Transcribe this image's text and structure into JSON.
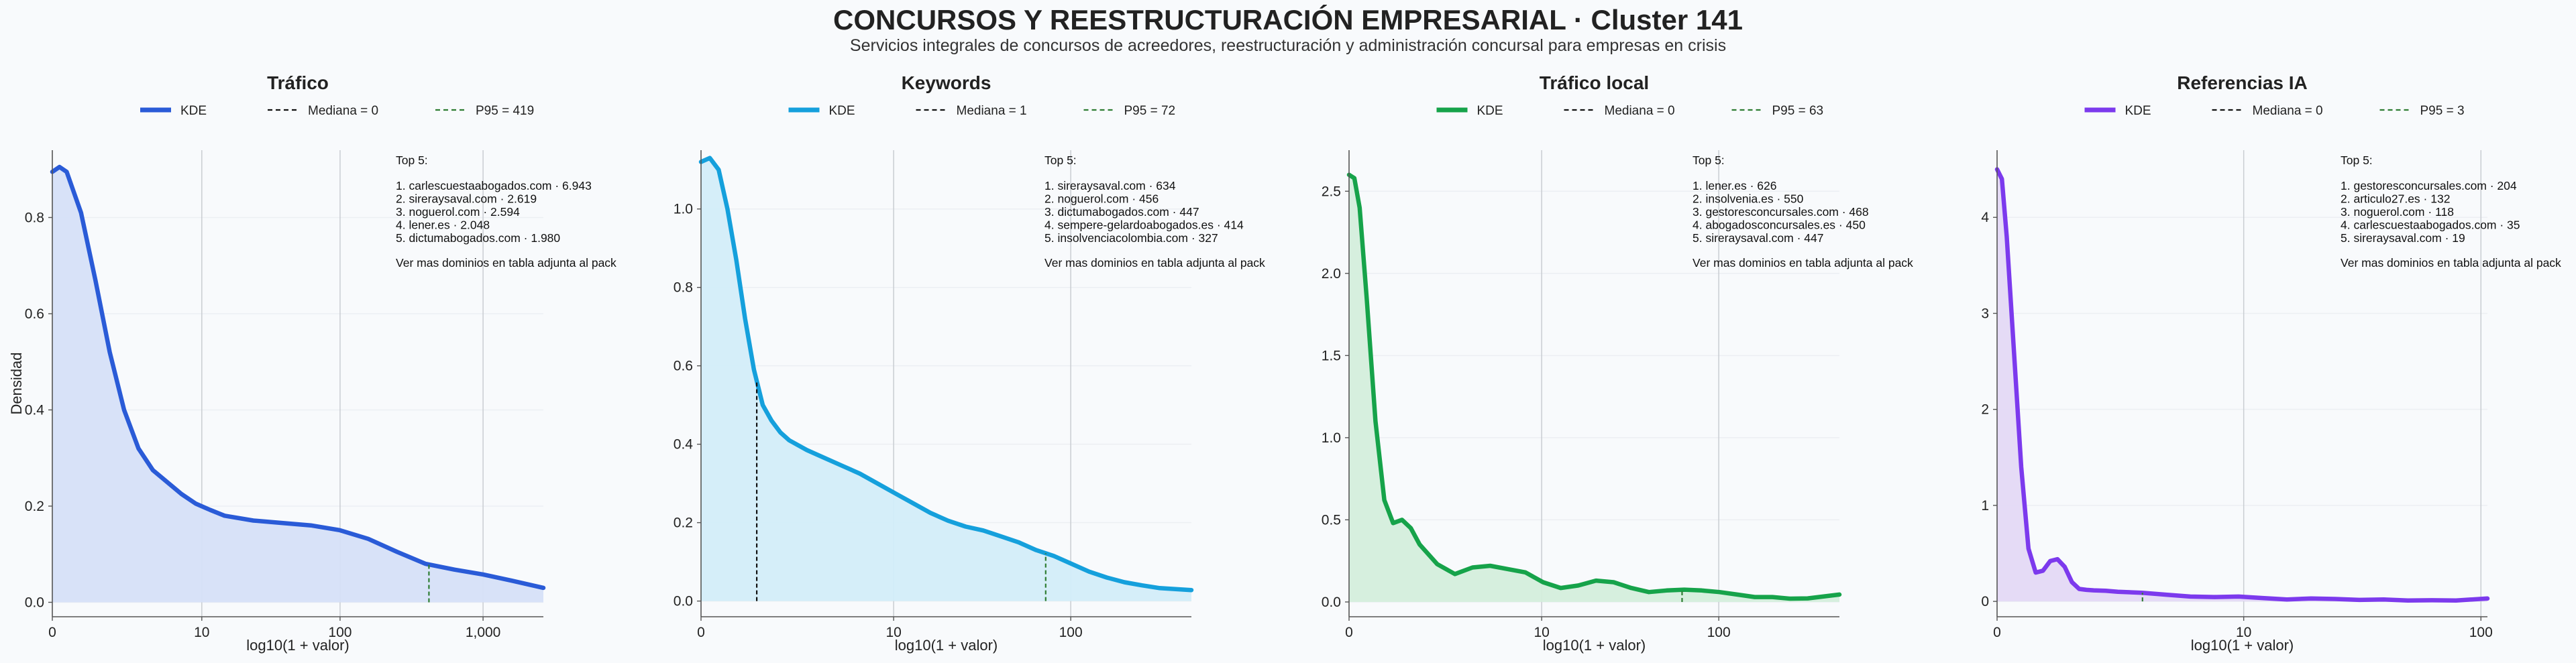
{
  "title": "CONCURSOS Y REESTRUCTURACIÓN EMPRESARIAL · Cluster 141",
  "subtitle": "Servicios integrales de concursos de acreedores, reestructuración y administración concursal para empresas en crisis",
  "colors": {
    "background": "#f8fafc",
    "median": "#111111",
    "p95": "#2e7d32"
  },
  "chart_data": [
    {
      "type": "area",
      "title": "Tráfico",
      "color": "#2a5bd7",
      "fill": "#d6e0f8",
      "xlabel": "log10(1 + valor)",
      "ylabel": "Densidad",
      "xlim": [
        0,
        3.42
      ],
      "ylim": [
        -0.03,
        0.94
      ],
      "xticks": [
        {
          "v": 0,
          "label": "0"
        },
        {
          "v": 1.041,
          "label": "10"
        },
        {
          "v": 2.004,
          "label": "100"
        },
        {
          "v": 3.0,
          "label": "1,000"
        }
      ],
      "yticks": [
        {
          "v": 0,
          "label": "0.0"
        },
        {
          "v": 0.2,
          "label": "0.2"
        },
        {
          "v": 0.4,
          "label": "0.4"
        },
        {
          "v": 0.6,
          "label": "0.6"
        },
        {
          "v": 0.8,
          "label": "0.8"
        }
      ],
      "legend": [
        "KDE",
        "Mediana = 0",
        "P95 = 419"
      ],
      "median": 0,
      "p95": 2.623,
      "kde": {
        "x": [
          0,
          0.05,
          0.1,
          0.2,
          0.3,
          0.4,
          0.5,
          0.6,
          0.7,
          0.8,
          0.9,
          1.0,
          1.1,
          1.2,
          1.4,
          1.6,
          1.8,
          2.0,
          2.2,
          2.4,
          2.6,
          2.8,
          3.0,
          3.2,
          3.42
        ],
        "y": [
          0.895,
          0.905,
          0.895,
          0.81,
          0.67,
          0.52,
          0.4,
          0.32,
          0.275,
          0.25,
          0.225,
          0.205,
          0.192,
          0.18,
          0.17,
          0.165,
          0.16,
          0.15,
          0.132,
          0.105,
          0.08,
          0.068,
          0.058,
          0.045,
          0.03
        ]
      },
      "annotation": {
        "heading": "Top 5:",
        "items": [
          "1. carlescuestaabogados.com · 6.943",
          "2. sireraysaval.com · 2.619",
          "3. noguerol.com · 2.594",
          "4. lener.es · 2.048",
          "5. dictumabogados.com · 1.980"
        ],
        "footer": "Ver mas dominios en tabla adjunta al pack"
      }
    },
    {
      "type": "area",
      "title": "Keywords",
      "color": "#15a0dc",
      "fill": "#d3edf9",
      "xlabel": "log10(1 + valor)",
      "ylabel": "",
      "xlim": [
        0,
        2.78
      ],
      "ylim": [
        -0.04,
        1.15
      ],
      "xticks": [
        {
          "v": 0,
          "label": "0"
        },
        {
          "v": 1.092,
          "label": "10"
        },
        {
          "v": 2.096,
          "label": "100"
        }
      ],
      "yticks": [
        {
          "v": 0,
          "label": "0.0"
        },
        {
          "v": 0.2,
          "label": "0.2"
        },
        {
          "v": 0.4,
          "label": "0.4"
        },
        {
          "v": 0.6,
          "label": "0.6"
        },
        {
          "v": 0.8,
          "label": "0.8"
        },
        {
          "v": 1.0,
          "label": "1.0"
        }
      ],
      "legend": [
        "KDE",
        "Mediana = 1",
        "P95 = 72"
      ],
      "median": 0.316,
      "p95": 1.954,
      "kde": {
        "x": [
          0,
          0.05,
          0.1,
          0.15,
          0.2,
          0.25,
          0.3,
          0.35,
          0.4,
          0.45,
          0.5,
          0.6,
          0.7,
          0.8,
          0.9,
          1.0,
          1.1,
          1.2,
          1.3,
          1.4,
          1.5,
          1.6,
          1.7,
          1.8,
          1.9,
          2.0,
          2.1,
          2.2,
          2.3,
          2.4,
          2.5,
          2.6,
          2.78
        ],
        "y": [
          1.12,
          1.13,
          1.1,
          1.0,
          0.87,
          0.72,
          0.59,
          0.5,
          0.46,
          0.43,
          0.41,
          0.385,
          0.365,
          0.345,
          0.325,
          0.3,
          0.275,
          0.25,
          0.225,
          0.205,
          0.19,
          0.18,
          0.165,
          0.15,
          0.13,
          0.115,
          0.095,
          0.075,
          0.06,
          0.048,
          0.04,
          0.033,
          0.028
        ]
      },
      "annotation": {
        "heading": "Top 5:",
        "items": [
          "1. sireraysaval.com · 634",
          "2. noguerol.com · 456",
          "3. dictumabogados.com · 447",
          "4. sempere-gelardoabogados.es · 414",
          "5. insolvenciacolombia.com · 327"
        ],
        "footer": "Ver mas dominios en tabla adjunta al pack"
      }
    },
    {
      "type": "area",
      "title": "Tráfico local",
      "color": "#16a34a",
      "fill": "#d4eedc",
      "xlabel": "log10(1 + valor)",
      "ylabel": "",
      "xlim": [
        0,
        2.78
      ],
      "ylim": [
        -0.09,
        2.75
      ],
      "xticks": [
        {
          "v": 0,
          "label": "0"
        },
        {
          "v": 1.092,
          "label": "10"
        },
        {
          "v": 2.096,
          "label": "100"
        }
      ],
      "yticks": [
        {
          "v": 0,
          "label": "0.0"
        },
        {
          "v": 0.5,
          "label": "0.5"
        },
        {
          "v": 1.0,
          "label": "1.0"
        },
        {
          "v": 1.5,
          "label": "1.5"
        },
        {
          "v": 2.0,
          "label": "2.0"
        },
        {
          "v": 2.5,
          "label": "2.5"
        }
      ],
      "legend": [
        "KDE",
        "Mediana = 0",
        "P95 = 63"
      ],
      "median": 0,
      "p95": 1.888,
      "kde": {
        "x": [
          0,
          0.03,
          0.06,
          0.1,
          0.15,
          0.2,
          0.25,
          0.3,
          0.35,
          0.4,
          0.5,
          0.6,
          0.7,
          0.8,
          0.9,
          1.0,
          1.1,
          1.2,
          1.3,
          1.4,
          1.5,
          1.6,
          1.7,
          1.8,
          1.9,
          2.0,
          2.1,
          2.2,
          2.3,
          2.4,
          2.5,
          2.6,
          2.78
        ],
        "y": [
          2.6,
          2.58,
          2.4,
          1.85,
          1.1,
          0.62,
          0.48,
          0.5,
          0.45,
          0.35,
          0.23,
          0.17,
          0.21,
          0.22,
          0.2,
          0.18,
          0.12,
          0.085,
          0.1,
          0.13,
          0.12,
          0.085,
          0.06,
          0.07,
          0.075,
          0.07,
          0.06,
          0.045,
          0.03,
          0.03,
          0.02,
          0.022,
          0.045
        ]
      },
      "annotation": {
        "heading": "Top 5:",
        "items": [
          "1. lener.es · 626",
          "2. insolvenia.es · 550",
          "3. gestoresconcursales.com · 468",
          "4. abogadosconcursales.es · 450",
          "5. sireraysaval.com · 447"
        ],
        "footer": "Ver mas dominios en tabla adjunta al pack"
      }
    },
    {
      "type": "area",
      "title": "Referencias IA",
      "color": "#7c3aed",
      "fill": "#e4d9f6",
      "xlabel": "log10(1 + valor)",
      "ylabel": "",
      "xlim": [
        0,
        2.03
      ],
      "ylim": [
        -0.16,
        4.7
      ],
      "xticks": [
        {
          "v": 0,
          "label": "0"
        },
        {
          "v": 1.021,
          "label": "10"
        },
        {
          "v": 2.003,
          "label": "100"
        }
      ],
      "yticks": [
        {
          "v": 0,
          "label": "0"
        },
        {
          "v": 1,
          "label": "1"
        },
        {
          "v": 2,
          "label": "2"
        },
        {
          "v": 3,
          "label": "3"
        },
        {
          "v": 4,
          "label": "4"
        }
      ],
      "legend": [
        "KDE",
        "Mediana = 0",
        "P95 = 3"
      ],
      "median": 0,
      "p95": 0.602,
      "kde": {
        "x": [
          0,
          0.02,
          0.04,
          0.07,
          0.1,
          0.13,
          0.16,
          0.19,
          0.22,
          0.25,
          0.28,
          0.31,
          0.34,
          0.37,
          0.4,
          0.45,
          0.5,
          0.6,
          0.7,
          0.8,
          0.9,
          1.0,
          1.1,
          1.2,
          1.3,
          1.4,
          1.5,
          1.6,
          1.7,
          1.8,
          1.9,
          2.03
        ],
        "y": [
          4.5,
          4.4,
          3.8,
          2.6,
          1.4,
          0.55,
          0.3,
          0.32,
          0.42,
          0.44,
          0.36,
          0.2,
          0.13,
          0.12,
          0.115,
          0.11,
          0.1,
          0.09,
          0.07,
          0.05,
          0.045,
          0.05,
          0.035,
          0.02,
          0.03,
          0.025,
          0.015,
          0.02,
          0.01,
          0.012,
          0.01,
          0.03
        ]
      },
      "annotation": {
        "heading": "Top 5:",
        "items": [
          "1. gestoresconcursales.com · 204",
          "2. articulo27.es · 132",
          "3. noguerol.com · 118",
          "4. carlescuestaabogados.com · 35",
          "5. sireraysaval.com · 19"
        ],
        "footer": "Ver mas dominios en tabla adjunta al pack"
      }
    }
  ]
}
